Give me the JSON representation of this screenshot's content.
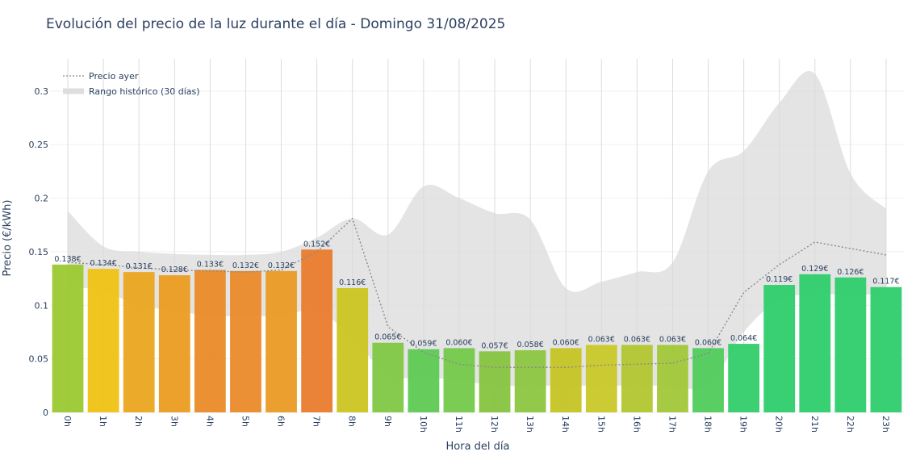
{
  "title": "Evolución del precio de la luz durante el día - Domingo 31/08/2025",
  "chart_data": {
    "type": "bar",
    "title": "Evolución del precio de la luz durante el día - Domingo 31/08/2025",
    "xlabel": "Hora del día",
    "ylabel": "Precio (€/kWh)",
    "ylim": [
      0,
      0.33
    ],
    "yticks": [
      0,
      0.05,
      0.1,
      0.15,
      0.2,
      0.25,
      0.3
    ],
    "ytick_labels": [
      "0",
      "0.05",
      "0.1",
      "0.15",
      "0.2",
      "0.25",
      "0.3"
    ],
    "grid": true,
    "legend_position": "top-left",
    "categories": [
      "0h",
      "1h",
      "2h",
      "3h",
      "4h",
      "5h",
      "6h",
      "7h",
      "8h",
      "9h",
      "10h",
      "11h",
      "12h",
      "13h",
      "14h",
      "15h",
      "16h",
      "17h",
      "18h",
      "19h",
      "20h",
      "21h",
      "22h",
      "23h"
    ],
    "values": [
      0.138,
      0.134,
      0.131,
      0.128,
      0.133,
      0.132,
      0.132,
      0.152,
      0.116,
      0.065,
      0.059,
      0.06,
      0.057,
      0.058,
      0.06,
      0.063,
      0.063,
      0.063,
      0.06,
      0.064,
      0.119,
      0.129,
      0.126,
      0.117
    ],
    "value_labels": [
      "0.138€",
      "0.134€",
      "0.131€",
      "0.128€",
      "0.133€",
      "0.132€",
      "0.132€",
      "0.152€",
      "0.116€",
      "0.065€",
      "0.059€",
      "0.060€",
      "0.057€",
      "0.058€",
      "0.060€",
      "0.063€",
      "0.063€",
      "0.063€",
      "0.060€",
      "0.064€",
      "0.119€",
      "0.129€",
      "0.126€",
      "0.117€"
    ],
    "bar_colors": [
      "#9bc82f",
      "#efc214",
      "#eba51f",
      "#eb9c22",
      "#ea8a28",
      "#eb8a2a",
      "#ea9a24",
      "#e97b2c",
      "#ccc522",
      "#80c845",
      "#5ec953",
      "#73c949",
      "#86c43f",
      "#8dc640",
      "#c6c425",
      "#c9c828",
      "#b1c630",
      "#a1c839",
      "#4fcb5b",
      "#33cd6a",
      "#2ecd6c",
      "#2ecd6c",
      "#2ecd6c",
      "#2ecd6c"
    ],
    "series": [
      {
        "name": "Precio ayer",
        "line_color": "#8a8a8a",
        "values": [
          0.14,
          0.138,
          0.135,
          0.133,
          0.132,
          0.131,
          0.133,
          0.15,
          0.181,
          0.08,
          0.056,
          0.045,
          0.042,
          0.042,
          0.042,
          0.044,
          0.045,
          0.046,
          0.055,
          0.112,
          0.138,
          0.159,
          0.153,
          0.147
        ]
      },
      {
        "name": "Rango histórico (30 días)",
        "fill_color": "#d9d9d9",
        "upper": [
          0.188,
          0.155,
          0.15,
          0.148,
          0.147,
          0.147,
          0.15,
          0.163,
          0.181,
          0.166,
          0.211,
          0.2,
          0.186,
          0.18,
          0.116,
          0.122,
          0.131,
          0.14,
          0.225,
          0.244,
          0.289,
          0.316,
          0.223,
          0.19
        ],
        "lower": [
          0.118,
          0.113,
          0.1,
          0.095,
          0.09,
          0.09,
          0.09,
          0.095,
          0.07,
          0.035,
          0.033,
          0.03,
          0.025,
          0.025,
          0.025,
          0.025,
          0.025,
          0.025,
          0.025,
          0.075,
          0.105,
          0.11,
          0.11,
          0.11
        ]
      }
    ]
  }
}
